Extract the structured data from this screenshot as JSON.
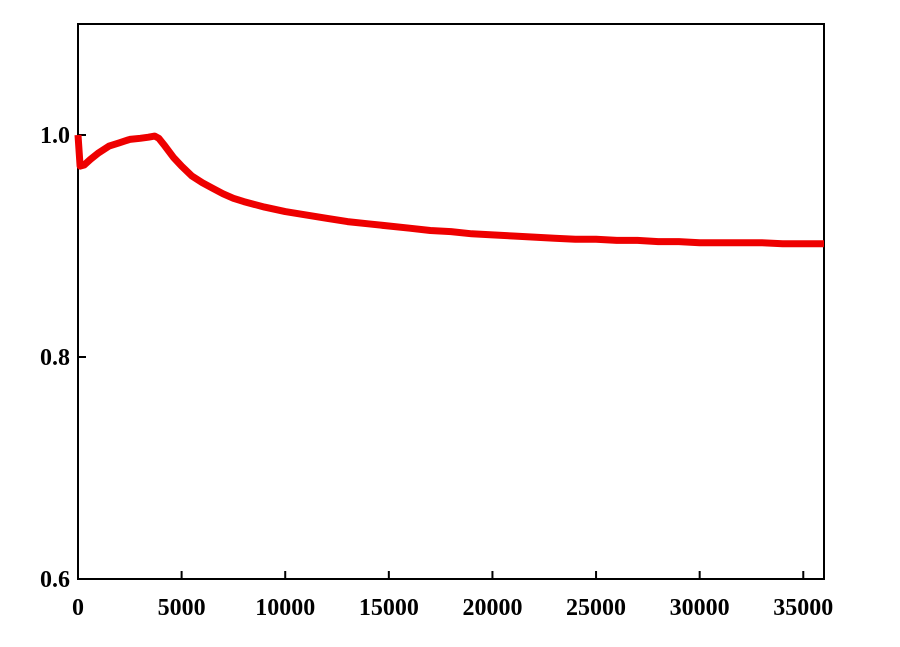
{
  "chart_data": {
    "type": "line",
    "title": "",
    "xlabel": "",
    "ylabel": "",
    "xlim": [
      0,
      36000
    ],
    "ylim": [
      0.6,
      1.1
    ],
    "x_ticks": [
      0,
      5000,
      10000,
      15000,
      20000,
      25000,
      30000,
      35000
    ],
    "x_tick_labels": [
      "0",
      "5000",
      "10000",
      "15000",
      "20000",
      "25000",
      "30000",
      "35000"
    ],
    "y_ticks": [
      0.6,
      0.8,
      1.0
    ],
    "y_tick_labels": [
      "0.6",
      "0.8",
      "1.0"
    ],
    "grid": false,
    "legend": "none",
    "series": [
      {
        "color": "#ee0000",
        "x": [
          0,
          100,
          300,
          600,
          1000,
          1500,
          2000,
          2500,
          3000,
          3400,
          3700,
          3900,
          4200,
          4600,
          5000,
          5500,
          6000,
          6500,
          7000,
          7500,
          8000,
          9000,
          10000,
          11000,
          12000,
          13000,
          14000,
          15000,
          16000,
          17000,
          18000,
          19000,
          20000,
          21000,
          22000,
          23000,
          24000,
          25000,
          26000,
          27000,
          28000,
          29000,
          30000,
          31000,
          32000,
          33000,
          34000,
          35000,
          36000
        ],
        "y": [
          1.0,
          0.972,
          0.973,
          0.978,
          0.984,
          0.99,
          0.993,
          0.996,
          0.997,
          0.998,
          0.999,
          0.997,
          0.99,
          0.98,
          0.972,
          0.963,
          0.957,
          0.952,
          0.947,
          0.943,
          0.94,
          0.935,
          0.931,
          0.928,
          0.925,
          0.922,
          0.92,
          0.918,
          0.916,
          0.914,
          0.913,
          0.911,
          0.91,
          0.909,
          0.908,
          0.907,
          0.906,
          0.906,
          0.905,
          0.905,
          0.904,
          0.904,
          0.903,
          0.903,
          0.903,
          0.903,
          0.902,
          0.902,
          0.902
        ]
      }
    ]
  }
}
